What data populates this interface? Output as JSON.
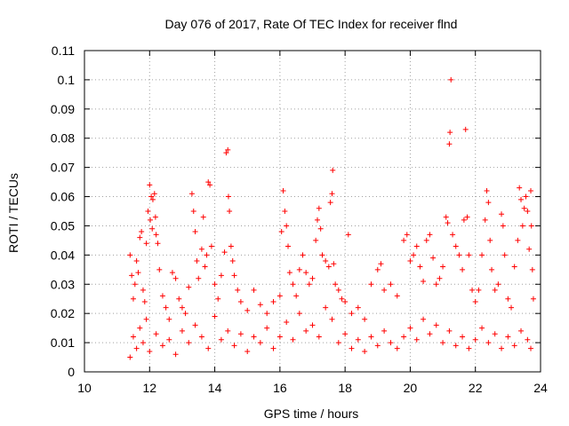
{
  "chart_data": {
    "type": "scatter",
    "title": "Day 076 of 2017, Rate Of TEC Index for receiver flnd",
    "xlabel": "GPS time / hours",
    "ylabel": "ROTI / TECUs",
    "xlim": [
      10,
      24
    ],
    "ylim": [
      0,
      0.11
    ],
    "x_ticks": [
      10,
      12,
      14,
      16,
      18,
      20,
      22,
      24
    ],
    "x_tick_labels": [
      "10",
      "12",
      "14",
      "16",
      "18",
      "20",
      "22",
      "24"
    ],
    "y_ticks": [
      0,
      0.01,
      0.02,
      0.03,
      0.04,
      0.05,
      0.06,
      0.07,
      0.08,
      0.09,
      0.1,
      0.11
    ],
    "y_tick_labels": [
      "0",
      "0.01",
      "0.02",
      "0.03",
      "0.04",
      "0.05",
      "0.06",
      "0.07",
      "0.08",
      "0.09",
      "0.1",
      "0.11"
    ],
    "grid": true,
    "marker": "+",
    "color": "#ff0000",
    "series": [
      {
        "points": [
          [
            11.4,
            0.04
          ],
          [
            11.45,
            0.033
          ],
          [
            11.5,
            0.025
          ],
          [
            11.55,
            0.03
          ],
          [
            11.6,
            0.038
          ],
          [
            11.65,
            0.034
          ],
          [
            11.7,
            0.046
          ],
          [
            11.75,
            0.048
          ],
          [
            11.8,
            0.028
          ],
          [
            11.85,
            0.024
          ],
          [
            11.9,
            0.044
          ],
          [
            11.95,
            0.055
          ],
          [
            12.0,
            0.064
          ],
          [
            12.02,
            0.052
          ],
          [
            12.05,
            0.06
          ],
          [
            12.08,
            0.049
          ],
          [
            12.1,
            0.059
          ],
          [
            12.15,
            0.061
          ],
          [
            12.18,
            0.053
          ],
          [
            12.2,
            0.047
          ],
          [
            12.25,
            0.044
          ],
          [
            12.3,
            0.035
          ],
          [
            12.4,
            0.026
          ],
          [
            12.5,
            0.022
          ],
          [
            12.6,
            0.018
          ],
          [
            12.7,
            0.034
          ],
          [
            12.8,
            0.032
          ],
          [
            12.9,
            0.025
          ],
          [
            13.0,
            0.022
          ],
          [
            13.1,
            0.02
          ],
          [
            13.2,
            0.029
          ],
          [
            13.3,
            0.061
          ],
          [
            13.35,
            0.055
          ],
          [
            13.4,
            0.048
          ],
          [
            13.45,
            0.038
          ],
          [
            13.5,
            0.032
          ],
          [
            13.6,
            0.042
          ],
          [
            13.65,
            0.053
          ],
          [
            13.7,
            0.036
          ],
          [
            13.75,
            0.04
          ],
          [
            13.8,
            0.065
          ],
          [
            13.85,
            0.064
          ],
          [
            13.9,
            0.043
          ],
          [
            14.0,
            0.03
          ],
          [
            14.1,
            0.025
          ],
          [
            14.2,
            0.033
          ],
          [
            14.3,
            0.041
          ],
          [
            14.35,
            0.075
          ],
          [
            14.4,
            0.076
          ],
          [
            14.42,
            0.06
          ],
          [
            14.45,
            0.055
          ],
          [
            14.5,
            0.043
          ],
          [
            14.55,
            0.038
          ],
          [
            14.6,
            0.033
          ],
          [
            14.7,
            0.028
          ],
          [
            14.8,
            0.024
          ],
          [
            15.0,
            0.021
          ],
          [
            15.2,
            0.028
          ],
          [
            15.4,
            0.023
          ],
          [
            15.6,
            0.02
          ],
          [
            15.8,
            0.024
          ],
          [
            16.0,
            0.026
          ],
          [
            16.05,
            0.048
          ],
          [
            16.1,
            0.062
          ],
          [
            16.15,
            0.055
          ],
          [
            16.2,
            0.05
          ],
          [
            16.25,
            0.043
          ],
          [
            16.3,
            0.034
          ],
          [
            16.4,
            0.03
          ],
          [
            16.5,
            0.026
          ],
          [
            16.6,
            0.035
          ],
          [
            16.7,
            0.04
          ],
          [
            16.8,
            0.034
          ],
          [
            16.9,
            0.03
          ],
          [
            17.0,
            0.032
          ],
          [
            17.1,
            0.045
          ],
          [
            17.15,
            0.052
          ],
          [
            17.2,
            0.056
          ],
          [
            17.25,
            0.049
          ],
          [
            17.3,
            0.04
          ],
          [
            17.4,
            0.038
          ],
          [
            17.5,
            0.036
          ],
          [
            17.55,
            0.058
          ],
          [
            17.6,
            0.061
          ],
          [
            17.62,
            0.069
          ],
          [
            17.65,
            0.037
          ],
          [
            17.7,
            0.03
          ],
          [
            17.8,
            0.028
          ],
          [
            17.9,
            0.025
          ],
          [
            18.0,
            0.024
          ],
          [
            18.1,
            0.047
          ],
          [
            18.2,
            0.02
          ],
          [
            18.4,
            0.022
          ],
          [
            18.6,
            0.018
          ],
          [
            18.8,
            0.03
          ],
          [
            19.0,
            0.035
          ],
          [
            19.1,
            0.037
          ],
          [
            19.2,
            0.028
          ],
          [
            19.4,
            0.03
          ],
          [
            19.6,
            0.026
          ],
          [
            19.8,
            0.045
          ],
          [
            19.9,
            0.047
          ],
          [
            20.0,
            0.038
          ],
          [
            20.1,
            0.04
          ],
          [
            20.2,
            0.043
          ],
          [
            20.3,
            0.036
          ],
          [
            20.4,
            0.031
          ],
          [
            20.5,
            0.045
          ],
          [
            20.6,
            0.047
          ],
          [
            20.7,
            0.039
          ],
          [
            20.8,
            0.03
          ],
          [
            20.9,
            0.032
          ],
          [
            21.0,
            0.036
          ],
          [
            21.1,
            0.053
          ],
          [
            21.15,
            0.051
          ],
          [
            21.2,
            0.078
          ],
          [
            21.22,
            0.082
          ],
          [
            21.25,
            0.1
          ],
          [
            21.3,
            0.047
          ],
          [
            21.4,
            0.043
          ],
          [
            21.5,
            0.04
          ],
          [
            21.6,
            0.035
          ],
          [
            21.65,
            0.052
          ],
          [
            21.7,
            0.083
          ],
          [
            21.75,
            0.053
          ],
          [
            21.8,
            0.04
          ],
          [
            21.9,
            0.028
          ],
          [
            22.0,
            0.024
          ],
          [
            22.1,
            0.028
          ],
          [
            22.2,
            0.04
          ],
          [
            22.3,
            0.052
          ],
          [
            22.35,
            0.062
          ],
          [
            22.4,
            0.058
          ],
          [
            22.45,
            0.045
          ],
          [
            22.5,
            0.035
          ],
          [
            22.6,
            0.028
          ],
          [
            22.7,
            0.03
          ],
          [
            22.8,
            0.054
          ],
          [
            22.85,
            0.05
          ],
          [
            22.9,
            0.04
          ],
          [
            23.0,
            0.025
          ],
          [
            23.1,
            0.022
          ],
          [
            23.2,
            0.036
          ],
          [
            23.3,
            0.045
          ],
          [
            23.35,
            0.063
          ],
          [
            23.4,
            0.059
          ],
          [
            23.45,
            0.05
          ],
          [
            23.5,
            0.056
          ],
          [
            23.55,
            0.06
          ],
          [
            23.6,
            0.055
          ],
          [
            23.65,
            0.042
          ],
          [
            23.7,
            0.062
          ],
          [
            23.72,
            0.05
          ],
          [
            23.75,
            0.035
          ],
          [
            23.78,
            0.025
          ],
          [
            11.4,
            0.005
          ],
          [
            11.5,
            0.012
          ],
          [
            11.6,
            0.008
          ],
          [
            11.7,
            0.015
          ],
          [
            11.8,
            0.01
          ],
          [
            11.9,
            0.018
          ],
          [
            12.0,
            0.007
          ],
          [
            12.2,
            0.013
          ],
          [
            12.4,
            0.009
          ],
          [
            12.6,
            0.011
          ],
          [
            12.8,
            0.006
          ],
          [
            13.0,
            0.014
          ],
          [
            13.2,
            0.01
          ],
          [
            13.4,
            0.016
          ],
          [
            13.6,
            0.012
          ],
          [
            13.8,
            0.008
          ],
          [
            14.0,
            0.019
          ],
          [
            14.2,
            0.011
          ],
          [
            14.4,
            0.014
          ],
          [
            14.6,
            0.009
          ],
          [
            14.8,
            0.013
          ],
          [
            15.0,
            0.007
          ],
          [
            15.2,
            0.012
          ],
          [
            15.4,
            0.01
          ],
          [
            15.6,
            0.015
          ],
          [
            15.8,
            0.008
          ],
          [
            16.0,
            0.012
          ],
          [
            16.2,
            0.017
          ],
          [
            16.4,
            0.011
          ],
          [
            16.6,
            0.02
          ],
          [
            16.8,
            0.014
          ],
          [
            17.0,
            0.016
          ],
          [
            17.2,
            0.012
          ],
          [
            17.4,
            0.022
          ],
          [
            17.6,
            0.018
          ],
          [
            17.8,
            0.01
          ],
          [
            18.0,
            0.013
          ],
          [
            18.2,
            0.008
          ],
          [
            18.4,
            0.011
          ],
          [
            18.6,
            0.007
          ],
          [
            18.8,
            0.012
          ],
          [
            19.0,
            0.009
          ],
          [
            19.2,
            0.014
          ],
          [
            19.4,
            0.01
          ],
          [
            19.6,
            0.008
          ],
          [
            19.8,
            0.012
          ],
          [
            20.0,
            0.015
          ],
          [
            20.2,
            0.011
          ],
          [
            20.4,
            0.018
          ],
          [
            20.6,
            0.013
          ],
          [
            20.8,
            0.016
          ],
          [
            21.0,
            0.01
          ],
          [
            21.2,
            0.014
          ],
          [
            21.4,
            0.009
          ],
          [
            21.6,
            0.012
          ],
          [
            21.8,
            0.008
          ],
          [
            22.0,
            0.011
          ],
          [
            22.2,
            0.015
          ],
          [
            22.4,
            0.01
          ],
          [
            22.6,
            0.013
          ],
          [
            22.8,
            0.008
          ],
          [
            23.0,
            0.012
          ],
          [
            23.2,
            0.009
          ],
          [
            23.4,
            0.014
          ],
          [
            23.6,
            0.011
          ],
          [
            23.7,
            0.008
          ]
        ]
      }
    ]
  }
}
